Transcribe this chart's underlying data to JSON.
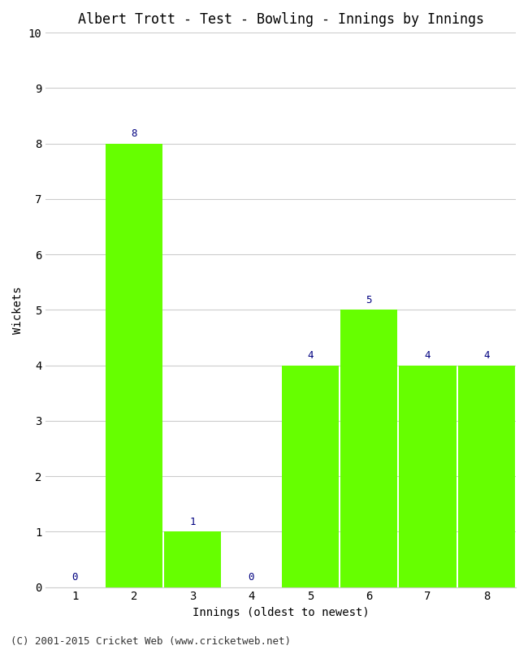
{
  "title": "Albert Trott - Test - Bowling - Innings by Innings",
  "xlabel": "Innings (oldest to newest)",
  "ylabel": "Wickets",
  "categories": [
    1,
    2,
    3,
    4,
    5,
    6,
    7,
    8
  ],
  "values": [
    0,
    8,
    1,
    0,
    4,
    5,
    4,
    4
  ],
  "bar_color": "#66FF00",
  "label_color": "#000080",
  "ylim": [
    0,
    10
  ],
  "yticks": [
    0,
    1,
    2,
    3,
    4,
    5,
    6,
    7,
    8,
    9,
    10
  ],
  "xticks": [
    1,
    2,
    3,
    4,
    5,
    6,
    7,
    8
  ],
  "grid_color": "#cccccc",
  "background_color": "#ffffff",
  "footer_text": "(C) 2001-2015 Cricket Web (www.cricketweb.net)",
  "title_fontsize": 12,
  "label_fontsize": 10,
  "tick_fontsize": 10,
  "footer_fontsize": 9,
  "bar_label_fontsize": 9,
  "bar_width": 0.97
}
